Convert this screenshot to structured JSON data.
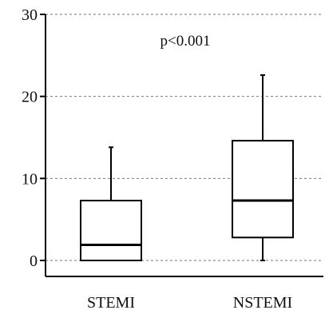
{
  "chart_data": {
    "type": "box",
    "title": "",
    "xlabel": "",
    "ylabel": "",
    "ylim": [
      0,
      30
    ],
    "yticks": [
      0,
      10,
      20,
      30
    ],
    "grid": "horizontal-dashed",
    "categories": [
      "STEMI",
      "NSTEMI"
    ],
    "boxes": [
      {
        "category": "STEMI",
        "min": 0,
        "q1": 0,
        "median": 1.9,
        "q3": 7.3,
        "max": 13.8
      },
      {
        "category": "NSTEMI",
        "min": 0,
        "q1": 2.8,
        "median": 7.3,
        "q3": 14.6,
        "max": 22.6
      }
    ],
    "annotation": "p<0.001",
    "colors": {
      "box_fill": "#ffffff",
      "stroke": "#000000",
      "grid": "#777777"
    }
  }
}
